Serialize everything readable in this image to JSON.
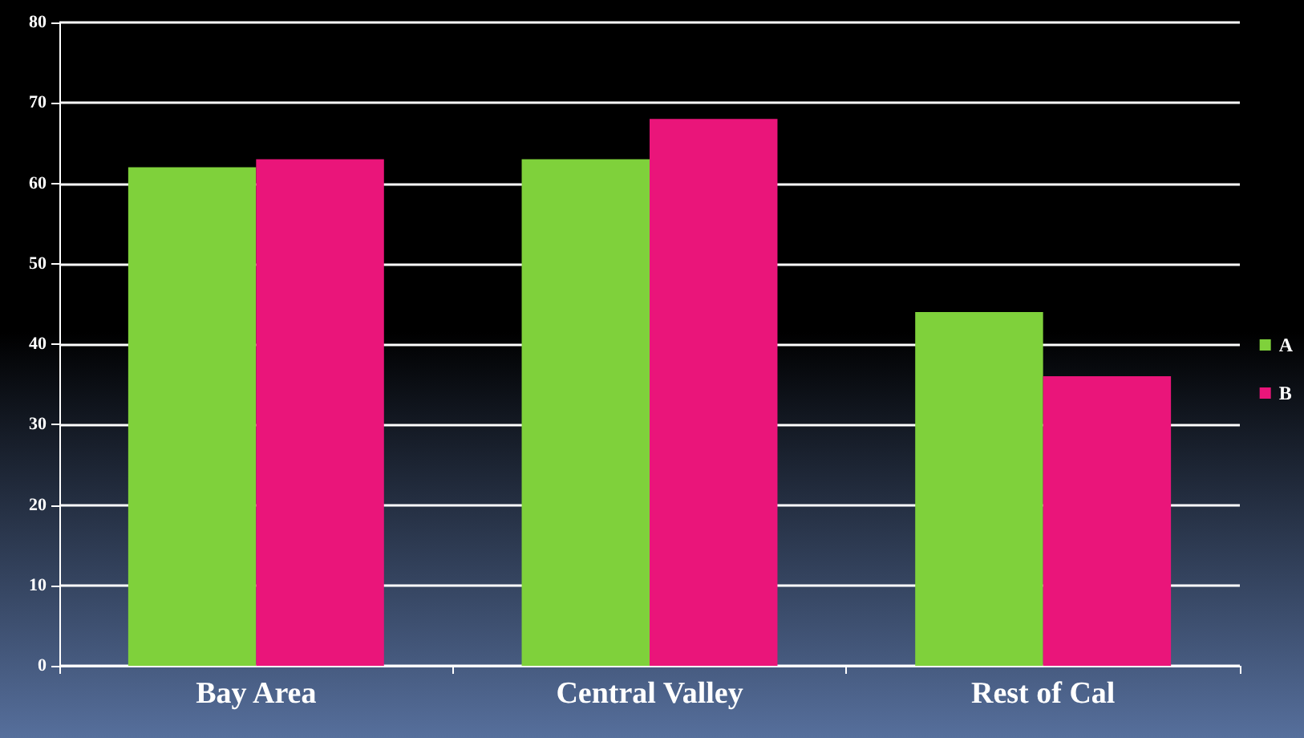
{
  "chart_data": {
    "type": "bar",
    "categories": [
      "Bay Area",
      "Central Valley",
      "Rest of Cal"
    ],
    "series": [
      {
        "name": "A",
        "color": "#7fd13b",
        "values": [
          62,
          63,
          44
        ]
      },
      {
        "name": "B",
        "color": "#ea157a",
        "values": [
          63,
          68,
          36
        ]
      }
    ],
    "ylim": [
      0,
      80
    ],
    "yticks": [
      0,
      10,
      20,
      30,
      40,
      50,
      60,
      70,
      80
    ],
    "grid": "y",
    "legend": "right"
  }
}
